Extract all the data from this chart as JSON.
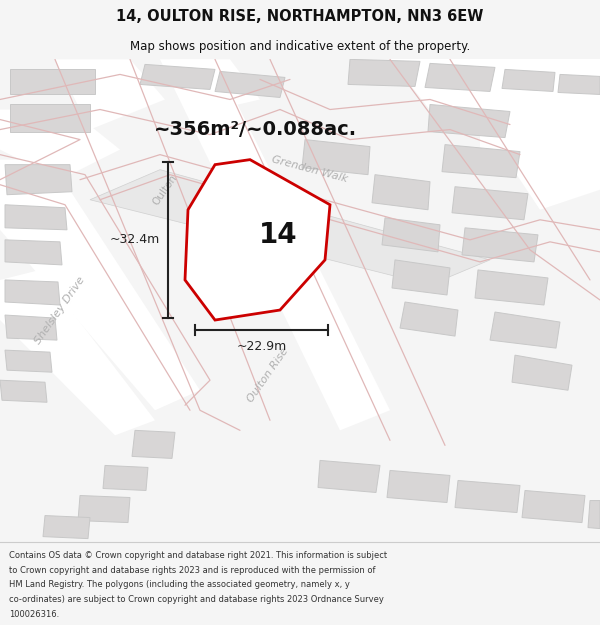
{
  "title_line1": "14, OULTON RISE, NORTHAMPTON, NN3 6EW",
  "title_line2": "Map shows position and indicative extent of the property.",
  "area_label": "~356m²/~0.088ac.",
  "number_label": "14",
  "dim_width": "~22.9m",
  "dim_height": "~32.4m",
  "footer_lines": [
    "Contains OS data © Crown copyright and database right 2021. This information is subject",
    "to Crown copyright and database rights 2023 and is reproduced with the permission of",
    "HM Land Registry. The polygons (including the associated geometry, namely x, y",
    "co-ordinates) are subject to Crown copyright and database rights 2023 Ordnance Survey",
    "100026316."
  ],
  "bg_color": "#f5f5f5",
  "map_bg": "#efefef",
  "road_fill": "#ffffff",
  "road_line": "#e0b8b8",
  "building_fill": "#d8d6d6",
  "building_edge": "#c8c8c8",
  "prop_fill": "#ffffff",
  "prop_stroke": "#cc0000",
  "street_color": "#b0b0b0",
  "dim_color": "#222222",
  "text_color": "#111111",
  "path_fill": "#e8e8e8",
  "path_edge": "#d0d0d0"
}
